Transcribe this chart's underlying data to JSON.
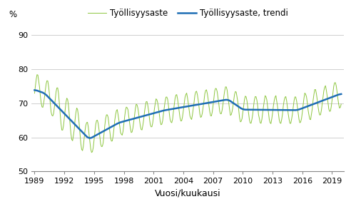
{
  "title": "",
  "ylabel": "%",
  "xlabel": "Vuosi/kuukausi",
  "legend_labels": [
    "Työllisyysaste",
    "Työllisyysaste, trendi"
  ],
  "line_color_raw": "#8dc63f",
  "line_color_trend": "#1f6eb5",
  "ylim": [
    50,
    93
  ],
  "yticks": [
    50,
    60,
    70,
    80,
    90
  ],
  "xticks": [
    1989,
    1992,
    1995,
    1998,
    2001,
    2004,
    2007,
    2010,
    2013,
    2016,
    2019
  ],
  "figsize": [
    4.92,
    2.93
  ],
  "dpi": 100
}
